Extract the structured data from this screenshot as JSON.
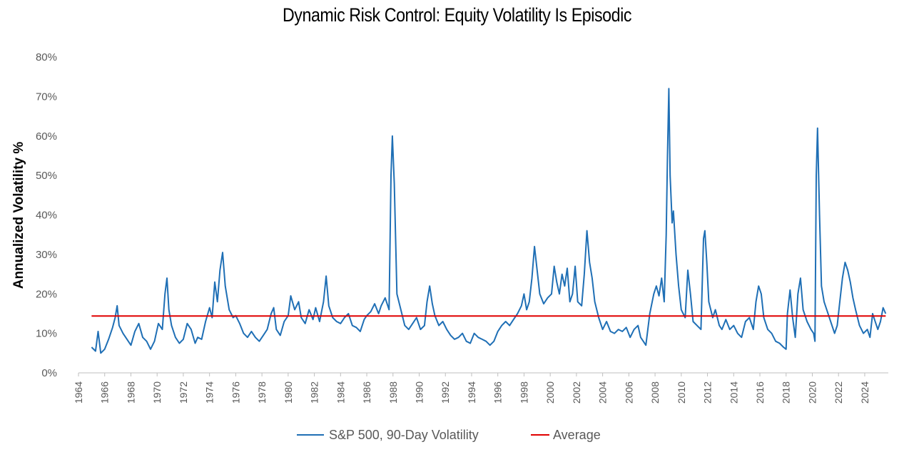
{
  "chart_data": {
    "type": "line",
    "title": "Dynamic Risk Control: Equity Volatility  Is Episodic",
    "xlabel": "",
    "ylabel": "Annualized Volatility %",
    "ylim": [
      0,
      80
    ],
    "yticks": [
      "0%",
      "10%",
      "20%",
      "30%",
      "40%",
      "50%",
      "60%",
      "70%",
      "80%"
    ],
    "xlim": [
      1964,
      2025.8
    ],
    "xticks": [
      "1964",
      "1966",
      "1968",
      "1970",
      "1972",
      "1974",
      "1976",
      "1978",
      "1980",
      "1982",
      "1984",
      "1986",
      "1988",
      "1990",
      "1992",
      "1994",
      "1996",
      "1998",
      "2000",
      "2002",
      "2004",
      "2006",
      "2008",
      "2010",
      "2012",
      "2014",
      "2016",
      "2018",
      "2020",
      "2022",
      "2024"
    ],
    "grid": false,
    "legend_position": "bottom",
    "series": [
      {
        "name": "S&P 500, 90-Day Volatility",
        "color": "#1f6fb5",
        "points": [
          [
            1965.0,
            6.5
          ],
          [
            1965.3,
            5.5
          ],
          [
            1965.5,
            10.5
          ],
          [
            1965.7,
            5.0
          ],
          [
            1966.0,
            6.0
          ],
          [
            1966.3,
            8.5
          ],
          [
            1966.6,
            11.5
          ],
          [
            1966.8,
            14.0
          ],
          [
            1966.95,
            17.0
          ],
          [
            1967.1,
            12.0
          ],
          [
            1967.4,
            10.0
          ],
          [
            1967.7,
            8.5
          ],
          [
            1968.0,
            7.0
          ],
          [
            1968.3,
            10.5
          ],
          [
            1968.6,
            12.5
          ],
          [
            1968.9,
            9.0
          ],
          [
            1969.2,
            8.0
          ],
          [
            1969.5,
            6.0
          ],
          [
            1969.8,
            8.0
          ],
          [
            1970.1,
            12.5
          ],
          [
            1970.4,
            11.0
          ],
          [
            1970.6,
            20.0
          ],
          [
            1970.75,
            24.0
          ],
          [
            1970.9,
            16.0
          ],
          [
            1971.1,
            12.0
          ],
          [
            1971.4,
            9.0
          ],
          [
            1971.7,
            7.5
          ],
          [
            1972.0,
            8.5
          ],
          [
            1972.3,
            12.5
          ],
          [
            1972.6,
            11.0
          ],
          [
            1972.9,
            7.5
          ],
          [
            1973.1,
            9.0
          ],
          [
            1973.4,
            8.5
          ],
          [
            1973.7,
            13.0
          ],
          [
            1974.0,
            16.5
          ],
          [
            1974.2,
            14.0
          ],
          [
            1974.4,
            23.0
          ],
          [
            1974.6,
            18.0
          ],
          [
            1974.8,
            26.0
          ],
          [
            1975.0,
            30.5
          ],
          [
            1975.2,
            22.0
          ],
          [
            1975.5,
            16.0
          ],
          [
            1975.8,
            14.0
          ],
          [
            1976.0,
            14.5
          ],
          [
            1976.3,
            12.5
          ],
          [
            1976.6,
            10.0
          ],
          [
            1976.9,
            9.0
          ],
          [
            1977.2,
            10.5
          ],
          [
            1977.5,
            9.0
          ],
          [
            1977.8,
            8.0
          ],
          [
            1978.1,
            9.5
          ],
          [
            1978.4,
            11.0
          ],
          [
            1978.7,
            15.0
          ],
          [
            1978.9,
            16.5
          ],
          [
            1979.1,
            11.0
          ],
          [
            1979.4,
            9.5
          ],
          [
            1979.7,
            13.0
          ],
          [
            1980.0,
            14.5
          ],
          [
            1980.2,
            19.5
          ],
          [
            1980.5,
            16.0
          ],
          [
            1980.8,
            18.0
          ],
          [
            1981.0,
            14.0
          ],
          [
            1981.3,
            12.5
          ],
          [
            1981.6,
            16.0
          ],
          [
            1981.9,
            13.5
          ],
          [
            1982.1,
            16.5
          ],
          [
            1982.4,
            13.0
          ],
          [
            1982.7,
            18.0
          ],
          [
            1982.9,
            24.5
          ],
          [
            1983.1,
            17.0
          ],
          [
            1983.4,
            14.0
          ],
          [
            1983.7,
            13.0
          ],
          [
            1984.0,
            12.5
          ],
          [
            1984.3,
            14.0
          ],
          [
            1984.6,
            15.0
          ],
          [
            1984.9,
            12.0
          ],
          [
            1985.2,
            11.5
          ],
          [
            1985.5,
            10.5
          ],
          [
            1985.8,
            13.5
          ],
          [
            1986.0,
            14.5
          ],
          [
            1986.3,
            15.5
          ],
          [
            1986.6,
            17.5
          ],
          [
            1986.9,
            15.0
          ],
          [
            1987.1,
            17.0
          ],
          [
            1987.4,
            19.0
          ],
          [
            1987.7,
            16.0
          ],
          [
            1987.85,
            50.0
          ],
          [
            1987.95,
            60.0
          ],
          [
            1988.1,
            48.0
          ],
          [
            1988.3,
            20.0
          ],
          [
            1988.6,
            16.0
          ],
          [
            1988.9,
            12.0
          ],
          [
            1989.2,
            11.0
          ],
          [
            1989.5,
            12.5
          ],
          [
            1989.8,
            14.0
          ],
          [
            1990.1,
            11.0
          ],
          [
            1990.4,
            12.0
          ],
          [
            1990.6,
            18.0
          ],
          [
            1990.8,
            22.0
          ],
          [
            1991.0,
            17.5
          ],
          [
            1991.2,
            14.5
          ],
          [
            1991.5,
            12.0
          ],
          [
            1991.8,
            13.0
          ],
          [
            1992.1,
            11.0
          ],
          [
            1992.4,
            9.5
          ],
          [
            1992.7,
            8.5
          ],
          [
            1993.0,
            9.0
          ],
          [
            1993.3,
            10.0
          ],
          [
            1993.6,
            8.0
          ],
          [
            1993.9,
            7.5
          ],
          [
            1994.2,
            10.0
          ],
          [
            1994.5,
            9.0
          ],
          [
            1994.8,
            8.5
          ],
          [
            1995.1,
            8.0
          ],
          [
            1995.4,
            7.0
          ],
          [
            1995.7,
            8.0
          ],
          [
            1996.0,
            10.5
          ],
          [
            1996.3,
            12.0
          ],
          [
            1996.6,
            13.0
          ],
          [
            1996.9,
            12.0
          ],
          [
            1997.2,
            13.5
          ],
          [
            1997.5,
            15.0
          ],
          [
            1997.8,
            17.0
          ],
          [
            1998.0,
            20.0
          ],
          [
            1998.2,
            16.0
          ],
          [
            1998.4,
            18.0
          ],
          [
            1998.6,
            24.0
          ],
          [
            1998.8,
            32.0
          ],
          [
            1999.0,
            26.0
          ],
          [
            1999.2,
            20.0
          ],
          [
            1999.5,
            17.5
          ],
          [
            1999.8,
            19.0
          ],
          [
            2000.1,
            20.0
          ],
          [
            2000.3,
            27.0
          ],
          [
            2000.5,
            23.0
          ],
          [
            2000.7,
            20.0
          ],
          [
            2000.9,
            25.0
          ],
          [
            2001.1,
            22.0
          ],
          [
            2001.3,
            26.5
          ],
          [
            2001.5,
            18.0
          ],
          [
            2001.7,
            20.0
          ],
          [
            2001.9,
            27.0
          ],
          [
            2002.1,
            18.0
          ],
          [
            2002.4,
            17.0
          ],
          [
            2002.6,
            25.0
          ],
          [
            2002.8,
            36.0
          ],
          [
            2003.0,
            28.0
          ],
          [
            2003.2,
            24.0
          ],
          [
            2003.4,
            18.0
          ],
          [
            2003.7,
            14.0
          ],
          [
            2004.0,
            11.0
          ],
          [
            2004.3,
            13.0
          ],
          [
            2004.6,
            10.5
          ],
          [
            2004.9,
            10.0
          ],
          [
            2005.2,
            11.0
          ],
          [
            2005.5,
            10.5
          ],
          [
            2005.8,
            11.5
          ],
          [
            2006.1,
            9.0
          ],
          [
            2006.4,
            11.0
          ],
          [
            2006.7,
            12.0
          ],
          [
            2006.9,
            9.0
          ],
          [
            2007.1,
            8.0
          ],
          [
            2007.3,
            7.0
          ],
          [
            2007.6,
            15.0
          ],
          [
            2007.9,
            20.0
          ],
          [
            2008.1,
            22.0
          ],
          [
            2008.3,
            19.5
          ],
          [
            2008.5,
            24.0
          ],
          [
            2008.7,
            18.0
          ],
          [
            2008.85,
            35.0
          ],
          [
            2008.95,
            55.0
          ],
          [
            2009.05,
            72.0
          ],
          [
            2009.15,
            50.0
          ],
          [
            2009.3,
            38.0
          ],
          [
            2009.4,
            41.0
          ],
          [
            2009.6,
            30.0
          ],
          [
            2009.8,
            22.0
          ],
          [
            2010.0,
            16.0
          ],
          [
            2010.3,
            14.0
          ],
          [
            2010.5,
            26.0
          ],
          [
            2010.7,
            20.0
          ],
          [
            2010.9,
            13.0
          ],
          [
            2011.2,
            12.0
          ],
          [
            2011.5,
            11.0
          ],
          [
            2011.7,
            34.0
          ],
          [
            2011.8,
            36.0
          ],
          [
            2011.95,
            28.0
          ],
          [
            2012.1,
            18.0
          ],
          [
            2012.4,
            14.0
          ],
          [
            2012.6,
            16.0
          ],
          [
            2012.9,
            12.0
          ],
          [
            2013.1,
            11.0
          ],
          [
            2013.4,
            13.5
          ],
          [
            2013.7,
            11.0
          ],
          [
            2014.0,
            12.0
          ],
          [
            2014.3,
            10.0
          ],
          [
            2014.6,
            9.0
          ],
          [
            2014.9,
            13.0
          ],
          [
            2015.2,
            14.0
          ],
          [
            2015.5,
            11.0
          ],
          [
            2015.7,
            18.0
          ],
          [
            2015.9,
            22.0
          ],
          [
            2016.1,
            20.0
          ],
          [
            2016.3,
            14.0
          ],
          [
            2016.6,
            11.0
          ],
          [
            2016.9,
            10.0
          ],
          [
            2017.2,
            8.0
          ],
          [
            2017.5,
            7.5
          ],
          [
            2017.8,
            6.5
          ],
          [
            2018.0,
            6.0
          ],
          [
            2018.1,
            15.0
          ],
          [
            2018.3,
            21.0
          ],
          [
            2018.5,
            14.0
          ],
          [
            2018.7,
            9.0
          ],
          [
            2018.9,
            20.0
          ],
          [
            2019.1,
            24.0
          ],
          [
            2019.3,
            16.0
          ],
          [
            2019.6,
            13.0
          ],
          [
            2019.9,
            11.0
          ],
          [
            2020.1,
            10.0
          ],
          [
            2020.2,
            8.0
          ],
          [
            2020.3,
            50.0
          ],
          [
            2020.4,
            62.0
          ],
          [
            2020.55,
            40.0
          ],
          [
            2020.7,
            22.0
          ],
          [
            2020.9,
            18.0
          ],
          [
            2021.1,
            16.0
          ],
          [
            2021.4,
            13.0
          ],
          [
            2021.7,
            10.0
          ],
          [
            2021.9,
            12.0
          ],
          [
            2022.1,
            18.0
          ],
          [
            2022.3,
            24.0
          ],
          [
            2022.5,
            28.0
          ],
          [
            2022.7,
            26.0
          ],
          [
            2022.9,
            23.0
          ],
          [
            2023.1,
            19.0
          ],
          [
            2023.3,
            16.0
          ],
          [
            2023.6,
            12.0
          ],
          [
            2023.9,
            10.0
          ],
          [
            2024.2,
            11.0
          ],
          [
            2024.4,
            9.0
          ],
          [
            2024.6,
            15.0
          ],
          [
            2024.8,
            13.0
          ],
          [
            2025.0,
            11.0
          ],
          [
            2025.2,
            13.0
          ],
          [
            2025.4,
            16.5
          ],
          [
            2025.6,
            15.0
          ]
        ]
      },
      {
        "name": "Average",
        "color": "#e00000",
        "values": [
          14.4,
          14.4
        ],
        "x": [
          1965.0,
          2025.6
        ]
      }
    ]
  }
}
